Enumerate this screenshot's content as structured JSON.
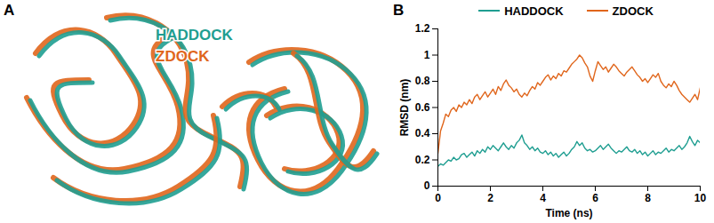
{
  "panel_a": {
    "panel_label": "A",
    "labels": [
      {
        "text": "HADDOCK",
        "color": "#1f9e91"
      },
      {
        "text": "ZDOCK",
        "color": "#e0661c"
      }
    ]
  },
  "chart_data": {
    "type": "line",
    "panel_label": "B",
    "x_label": "Time (ns)",
    "y_label": "RMSD (nm)",
    "xlim": [
      0,
      10
    ],
    "xticks": [
      0,
      2,
      4,
      6,
      8,
      10
    ],
    "ylim": [
      0,
      1.2
    ],
    "yticks": [
      0,
      0.2,
      0.4,
      0.6,
      0.8,
      1,
      1.2
    ],
    "grid": false,
    "legend": "top",
    "x": [
      0,
      0.1,
      0.2,
      0.3,
      0.4,
      0.5,
      0.6,
      0.7,
      0.8,
      0.9,
      1,
      1.1,
      1.2,
      1.3,
      1.4,
      1.5,
      1.6,
      1.7,
      1.8,
      1.9,
      2,
      2.1,
      2.2,
      2.3,
      2.4,
      2.5,
      2.6,
      2.7,
      2.8,
      2.9,
      3,
      3.1,
      3.2,
      3.3,
      3.4,
      3.5,
      3.6,
      3.7,
      3.8,
      3.9,
      4,
      4.1,
      4.2,
      4.3,
      4.4,
      4.5,
      4.6,
      4.7,
      4.8,
      4.9,
      5,
      5.1,
      5.2,
      5.3,
      5.4,
      5.5,
      5.6,
      5.7,
      5.8,
      5.9,
      6,
      6.1,
      6.2,
      6.3,
      6.4,
      6.5,
      6.6,
      6.7,
      6.8,
      6.9,
      7,
      7.1,
      7.2,
      7.3,
      7.4,
      7.5,
      7.6,
      7.7,
      7.8,
      7.9,
      8,
      8.1,
      8.2,
      8.3,
      8.4,
      8.5,
      8.6,
      8.7,
      8.8,
      8.9,
      9,
      9.1,
      9.2,
      9.3,
      9.4,
      9.5,
      9.6,
      9.7,
      9.8,
      9.9,
      10
    ],
    "series": [
      {
        "name": "HADDOCK",
        "color": "#1f9e91",
        "values": [
          0.15,
          0.17,
          0.16,
          0.18,
          0.2,
          0.19,
          0.22,
          0.2,
          0.21,
          0.24,
          0.25,
          0.22,
          0.24,
          0.26,
          0.23,
          0.27,
          0.25,
          0.28,
          0.26,
          0.3,
          0.28,
          0.31,
          0.29,
          0.27,
          0.3,
          0.33,
          0.3,
          0.28,
          0.31,
          0.29,
          0.33,
          0.35,
          0.39,
          0.33,
          0.31,
          0.28,
          0.3,
          0.27,
          0.29,
          0.26,
          0.25,
          0.27,
          0.24,
          0.26,
          0.23,
          0.25,
          0.22,
          0.24,
          0.26,
          0.23,
          0.25,
          0.28,
          0.3,
          0.34,
          0.31,
          0.33,
          0.29,
          0.27,
          0.28,
          0.26,
          0.27,
          0.29,
          0.31,
          0.28,
          0.3,
          0.32,
          0.29,
          0.27,
          0.25,
          0.27,
          0.26,
          0.28,
          0.3,
          0.27,
          0.26,
          0.28,
          0.25,
          0.27,
          0.24,
          0.26,
          0.23,
          0.25,
          0.27,
          0.24,
          0.26,
          0.25,
          0.27,
          0.29,
          0.26,
          0.28,
          0.27,
          0.29,
          0.31,
          0.28,
          0.3,
          0.33,
          0.38,
          0.34,
          0.31,
          0.35,
          0.33
        ]
      },
      {
        "name": "ZDOCK",
        "color": "#e0661c",
        "values": [
          0.25,
          0.42,
          0.48,
          0.55,
          0.53,
          0.58,
          0.6,
          0.57,
          0.62,
          0.6,
          0.64,
          0.62,
          0.66,
          0.63,
          0.68,
          0.7,
          0.66,
          0.69,
          0.72,
          0.68,
          0.71,
          0.74,
          0.7,
          0.76,
          0.73,
          0.78,
          0.81,
          0.77,
          0.75,
          0.72,
          0.74,
          0.7,
          0.68,
          0.71,
          0.69,
          0.73,
          0.76,
          0.74,
          0.79,
          0.77,
          0.8,
          0.83,
          0.85,
          0.81,
          0.84,
          0.82,
          0.86,
          0.84,
          0.88,
          0.87,
          0.9,
          0.93,
          0.95,
          0.97,
          1.0,
          0.98,
          0.94,
          0.91,
          0.84,
          0.8,
          0.88,
          0.95,
          0.92,
          0.89,
          0.91,
          0.87,
          0.9,
          0.93,
          0.91,
          0.88,
          0.86,
          0.84,
          0.87,
          0.89,
          0.91,
          0.88,
          0.85,
          0.83,
          0.8,
          0.82,
          0.79,
          0.82,
          0.85,
          0.83,
          0.86,
          0.8,
          0.77,
          0.75,
          0.78,
          0.76,
          0.8,
          0.77,
          0.73,
          0.7,
          0.68,
          0.66,
          0.64,
          0.67,
          0.7,
          0.66,
          0.75
        ]
      }
    ]
  }
}
